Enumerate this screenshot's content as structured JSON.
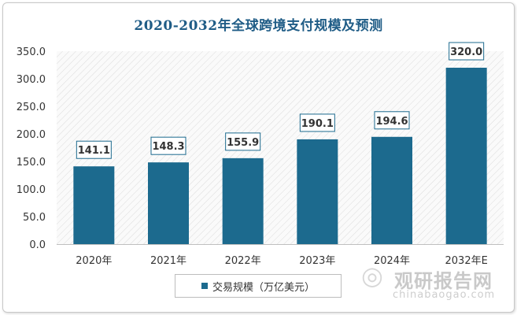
{
  "chart_data": {
    "type": "bar",
    "title": "2020-2032年全球跨境支付规模及预测",
    "categories": [
      "2020年",
      "2021年",
      "2022年",
      "2023年",
      "2024年",
      "2032年E"
    ],
    "series": [
      {
        "name": "交易规模（万亿美元）",
        "values": [
          141.1,
          148.3,
          155.9,
          190.1,
          194.6,
          320.0
        ]
      }
    ],
    "value_labels": [
      "141.1",
      "148.3",
      "155.9",
      "190.1",
      "194.6",
      "320.0"
    ],
    "yticks": [
      "0.0",
      "50.0",
      "100.0",
      "150.0",
      "200.0",
      "250.0",
      "300.0",
      "350.0"
    ],
    "ylim": [
      0,
      350
    ],
    "legend_position": "bottom",
    "grid": false,
    "plot_background": "diagonal-hatch",
    "colors": {
      "bar": "#1c6a8e",
      "title": "#1f5c86",
      "label_border": "#1c6a8e"
    }
  },
  "watermark": {
    "logo_icon": "swirl-logo-icon",
    "name": "观研报告网",
    "url": "chinabaogao.com"
  }
}
